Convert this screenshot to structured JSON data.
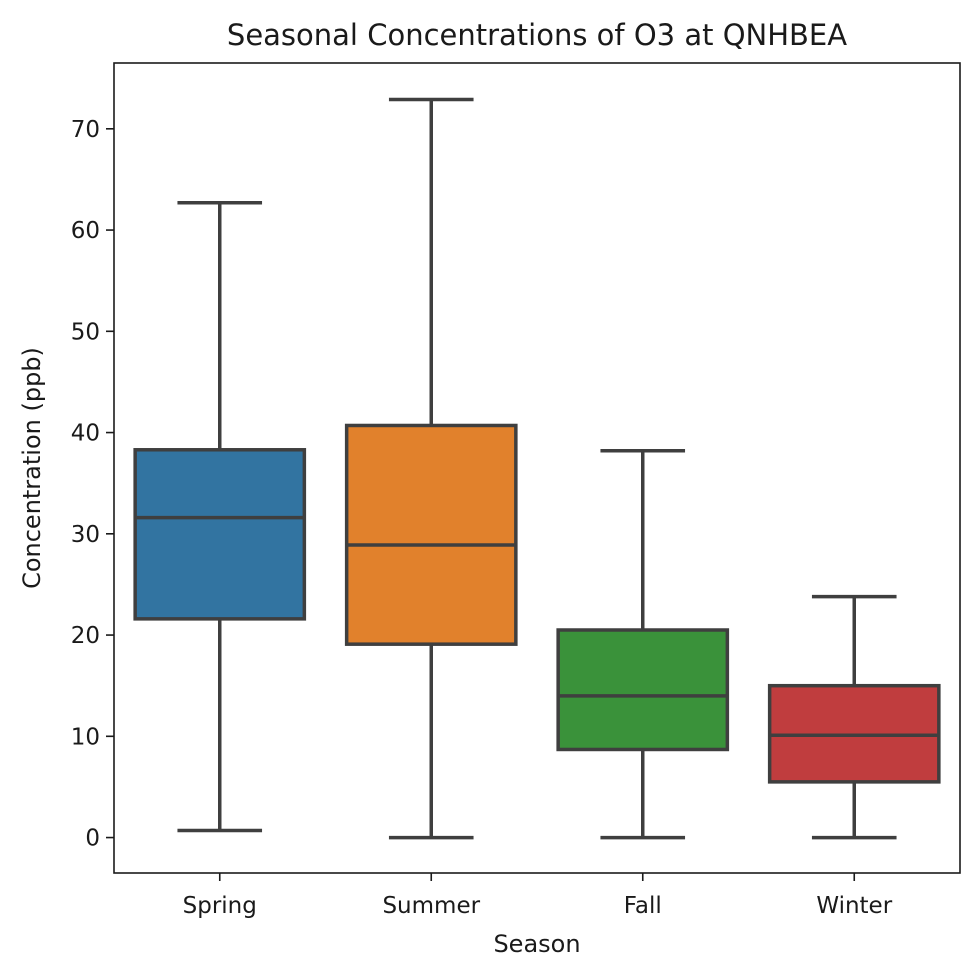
{
  "chart_data": {
    "type": "boxplot",
    "title": "Seasonal Concentrations of O3 at QNHBEA",
    "xlabel": "Season",
    "ylabel": "Concentration (ppb)",
    "categories": [
      "Spring",
      "Summer",
      "Fall",
      "Winter"
    ],
    "ylim": [
      -3.5,
      76.5
    ],
    "yticks": [
      0,
      10,
      20,
      30,
      40,
      50,
      60,
      70
    ],
    "grid": false,
    "boxes": [
      {
        "category": "Spring",
        "whisker_low": 0.7,
        "q1": 21.6,
        "median": 31.6,
        "q3": 38.3,
        "whisker_high": 62.7,
        "color": "#3274a1"
      },
      {
        "category": "Summer",
        "whisker_low": 0.0,
        "q1": 19.1,
        "median": 28.9,
        "q3": 40.7,
        "whisker_high": 72.9,
        "color": "#e1812c"
      },
      {
        "category": "Fall",
        "whisker_low": 0.0,
        "q1": 8.7,
        "median": 14.0,
        "q3": 20.5,
        "whisker_high": 38.2,
        "color": "#3a923a"
      },
      {
        "category": "Winter",
        "whisker_low": 0.0,
        "q1": 5.5,
        "median": 10.1,
        "q3": 15.0,
        "whisker_high": 23.8,
        "color": "#c03d3e"
      }
    ]
  }
}
